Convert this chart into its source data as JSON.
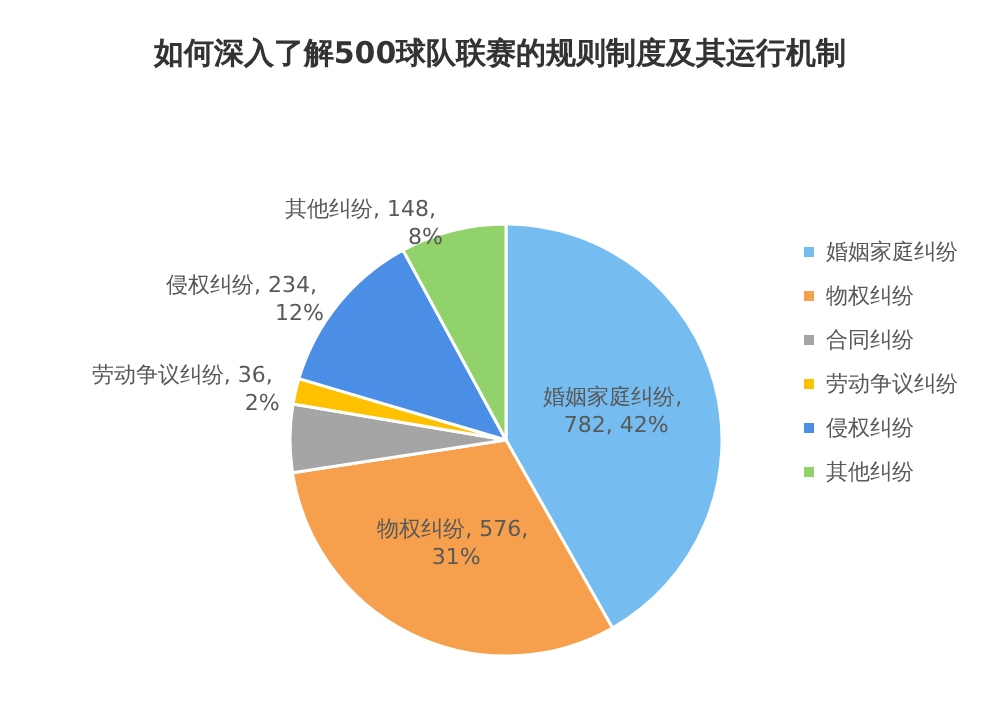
{
  "chart_data": {
    "type": "pie",
    "title": "如何深入了解500球队联赛的规则制度及其运行机制",
    "categories": [
      "婚姻家庭纠纷",
      "物权纠纷",
      "合同纠纷",
      "劳动争议纠纷",
      "侵权纠纷",
      "其他纠纷"
    ],
    "values": [
      782,
      576,
      95,
      36,
      234,
      148
    ],
    "value_labels": [
      "婚姻家庭纠纷, 782, 42%",
      "物权纠纷, 576, 31%",
      null,
      "劳动争议纠纷, 36, 2%",
      "侵权纠纷, 234, 12%",
      "其他纠纷, 148, 8%"
    ],
    "colors": [
      "#75bdf0",
      "#f6a04d",
      "#a5a5a5",
      "#ffc000",
      "#4a8ee6",
      "#92d26a"
    ],
    "legend": "right"
  }
}
